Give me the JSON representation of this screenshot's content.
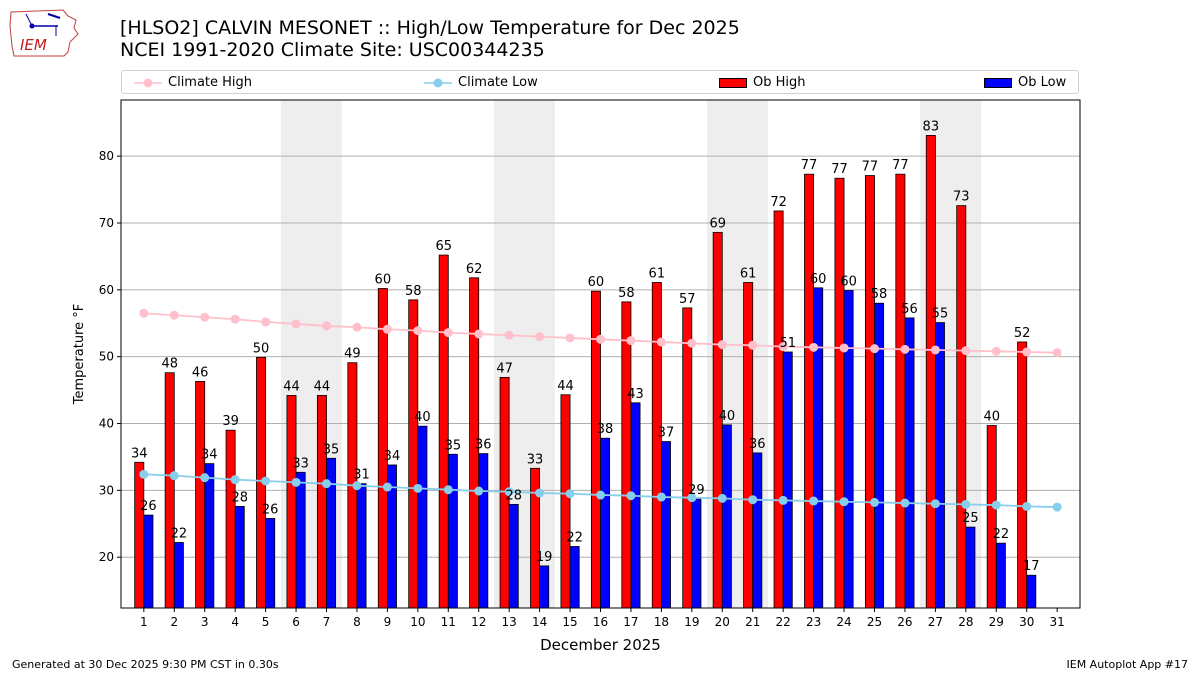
{
  "header": {
    "title_line1": "[HLSO2] CALVIN MESONET :: High/Low Temperature for Dec 2025",
    "title_line2": "NCEI 1991-2020 Climate Site: USC00344235"
  },
  "logo": {
    "text": "IEM",
    "icon": "iowa-state-map-icon"
  },
  "footer": {
    "left": "Generated at 30 Dec 2025 9:30 PM CST in 0.30s",
    "right": "IEM Autoplot App #17"
  },
  "colors": {
    "ob_high": "#ff0000",
    "ob_low": "#0000ff",
    "climate_high": "#ffc0cb",
    "climate_low": "#87ceeb",
    "weekend_band": "#eeeeee",
    "grid": "#b0b0b0"
  },
  "chart_data": {
    "type": "bar",
    "xlabel": "December 2025",
    "ylabel": "Temperature °F",
    "ylim": [
      12.4,
      88.4
    ],
    "yticks": [
      20,
      30,
      40,
      50,
      60,
      70,
      80
    ],
    "grid": "horizontal",
    "legend_position": "top",
    "categories": [
      1,
      2,
      3,
      4,
      5,
      6,
      7,
      8,
      9,
      10,
      11,
      12,
      13,
      14,
      15,
      16,
      17,
      18,
      19,
      20,
      21,
      22,
      23,
      24,
      25,
      26,
      27,
      28,
      29,
      30,
      31
    ],
    "weekend_bands": [
      [
        6,
        7
      ],
      [
        13,
        14
      ],
      [
        20,
        21
      ],
      [
        27,
        28
      ]
    ],
    "series": [
      {
        "name": "Ob High",
        "kind": "bar",
        "values": [
          34.2,
          47.6,
          46.3,
          39.0,
          49.9,
          44.2,
          44.2,
          49.1,
          60.2,
          58.5,
          65.2,
          61.8,
          46.9,
          33.3,
          44.3,
          59.8,
          58.2,
          61.1,
          57.3,
          68.6,
          61.1,
          71.8,
          77.3,
          76.7,
          77.1,
          77.3,
          83.1,
          72.6,
          39.7,
          52.2,
          null
        ],
        "labels": [
          "34",
          "48",
          "46",
          "39",
          "50",
          "44",
          "44",
          "49",
          "60",
          "58",
          "65",
          "62",
          "47",
          "33",
          "44",
          "60",
          "58",
          "61",
          "57",
          "69",
          "61",
          "72",
          "77",
          "77",
          "77",
          "77",
          "83",
          "73",
          "40",
          "52",
          ""
        ]
      },
      {
        "name": "Ob Low",
        "kind": "bar",
        "values": [
          26.3,
          22.2,
          34.0,
          27.6,
          25.8,
          32.7,
          34.8,
          31.0,
          33.8,
          39.6,
          35.4,
          35.5,
          27.9,
          18.7,
          21.6,
          37.8,
          43.1,
          37.3,
          28.7,
          39.8,
          35.6,
          50.7,
          60.3,
          59.9,
          58.0,
          55.8,
          55.1,
          24.5,
          22.1,
          17.3,
          null
        ],
        "labels": [
          "26",
          "22",
          "34",
          "28",
          "26",
          "33",
          "35",
          "31",
          "34",
          "40",
          "35",
          "36",
          "28",
          "19",
          "22",
          "38",
          "43",
          "37",
          "29",
          "40",
          "36",
          "51",
          "60",
          "60",
          "58",
          "56",
          "55",
          "25",
          "22",
          "17",
          ""
        ]
      },
      {
        "name": "Climate High",
        "kind": "line",
        "values": [
          56.5,
          56.2,
          55.9,
          55.6,
          55.2,
          54.9,
          54.6,
          54.4,
          54.1,
          53.9,
          53.6,
          53.4,
          53.2,
          53.0,
          52.8,
          52.6,
          52.4,
          52.2,
          52.0,
          51.8,
          51.7,
          51.5,
          51.4,
          51.3,
          51.2,
          51.1,
          51.0,
          50.9,
          50.8,
          50.7,
          50.6
        ]
      },
      {
        "name": "Climate Low",
        "kind": "line",
        "values": [
          32.4,
          32.2,
          31.9,
          31.6,
          31.4,
          31.2,
          31.0,
          30.7,
          30.5,
          30.3,
          30.1,
          29.9,
          29.8,
          29.6,
          29.5,
          29.3,
          29.2,
          29.0,
          28.9,
          28.8,
          28.6,
          28.5,
          28.4,
          28.3,
          28.2,
          28.1,
          28.0,
          27.9,
          27.8,
          27.6,
          27.5
        ]
      }
    ]
  },
  "legend": [
    {
      "label": "Climate High",
      "type": "line",
      "color": "#ffc0cb"
    },
    {
      "label": "Climate Low",
      "type": "line",
      "color": "#87ceeb"
    },
    {
      "label": "Ob High",
      "type": "bar",
      "color": "#ff0000"
    },
    {
      "label": "Ob Low",
      "type": "bar",
      "color": "#0000ff"
    }
  ]
}
